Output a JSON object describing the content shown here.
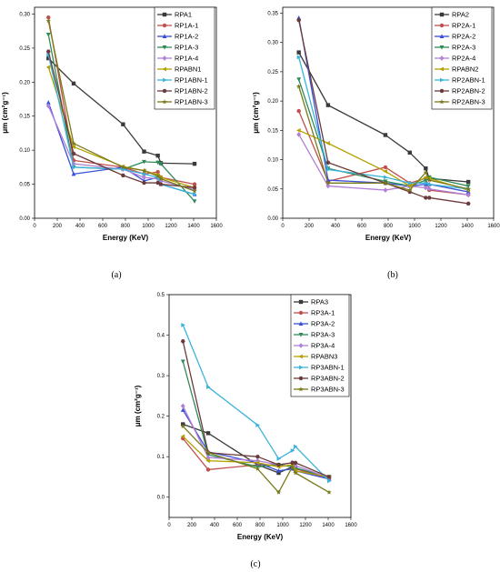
{
  "chart_data": [
    {
      "type": "line",
      "caption": "(a)",
      "xlabel": "Energy (KeV)",
      "ylabel": "μm (cm²g⁻¹)",
      "xlim": [
        0,
        1600
      ],
      "ylim": [
        0,
        0.31
      ],
      "xticks": [
        0,
        200,
        400,
        600,
        800,
        1000,
        1200,
        1400,
        1600
      ],
      "yticks": [
        0.0,
        0.05,
        0.1,
        0.15,
        0.2,
        0.25,
        0.3
      ],
      "ytick_labels": [
        "0.00",
        "0.05",
        "0.10",
        "0.15",
        "0.20",
        "0.25",
        "0.30"
      ],
      "legend_position": "top-right",
      "x": [
        122,
        344,
        779,
        964,
        1085,
        1112,
        1408
      ],
      "series": [
        {
          "name": "RPA1",
          "color": "#3a3a3a",
          "marker": "square",
          "values": [
            0.235,
            0.198,
            0.138,
            0.098,
            0.092,
            0.081,
            0.08
          ]
        },
        {
          "name": "RP1A-1",
          "color": "#c0504d",
          "marker": "circle",
          "values": [
            0.295,
            0.085,
            0.075,
            0.065,
            0.068,
            0.06,
            0.05
          ]
        },
        {
          "name": "RP1A-2",
          "color": "#3b4fd6",
          "marker": "triangle-up",
          "values": [
            0.17,
            0.065,
            0.075,
            0.055,
            0.06,
            0.05,
            0.035
          ]
        },
        {
          "name": "RP1A-3",
          "color": "#2e8b57",
          "marker": "triangle-down",
          "values": [
            0.27,
            0.075,
            0.072,
            0.083,
            0.082,
            0.08,
            0.025
          ]
        },
        {
          "name": "RP1A-4",
          "color": "#b07fd8",
          "marker": "diamond",
          "values": [
            0.165,
            0.08,
            0.072,
            0.06,
            0.058,
            0.055,
            0.042
          ]
        },
        {
          "name": "RPABN1",
          "color": "#b5a000",
          "marker": "triangle-left",
          "values": [
            0.222,
            0.105,
            0.076,
            0.07,
            0.064,
            0.06,
            0.045
          ]
        },
        {
          "name": "RP1ABN-1",
          "color": "#3ab4d8",
          "marker": "triangle-right",
          "values": [
            0.24,
            0.075,
            0.072,
            0.065,
            0.06,
            0.05,
            0.035
          ]
        },
        {
          "name": "RP1ABN-2",
          "color": "#6b3a3a",
          "marker": "hexagon",
          "values": [
            0.245,
            0.095,
            0.063,
            0.052,
            0.052,
            0.05,
            0.045
          ]
        },
        {
          "name": "RP1ABN-3",
          "color": "#7a7a1a",
          "marker": "star",
          "values": [
            0.29,
            0.11,
            0.075,
            0.07,
            0.062,
            0.058,
            0.04
          ]
        }
      ]
    },
    {
      "type": "line",
      "caption": "(b)",
      "xlabel": "Energy (KeV)",
      "ylabel": "μm (cm²g⁻¹)",
      "xlim": [
        0,
        1600
      ],
      "ylim": [
        0,
        0.36
      ],
      "xticks": [
        0,
        200,
        400,
        600,
        800,
        1000,
        1200,
        1400,
        1600
      ],
      "yticks": [
        0.0,
        0.05,
        0.1,
        0.15,
        0.2,
        0.25,
        0.3,
        0.35
      ],
      "ytick_labels": [
        "0.00",
        "0.05",
        "0.10",
        "0.15",
        "0.20",
        "0.25",
        "0.30",
        "0.35"
      ],
      "legend_position": "top-right",
      "x": [
        122,
        344,
        779,
        964,
        1085,
        1112,
        1408
      ],
      "series": [
        {
          "name": "RPA2",
          "color": "#3a3a3a",
          "marker": "square",
          "values": [
            0.283,
            0.193,
            0.142,
            0.112,
            0.085,
            0.068,
            0.062
          ]
        },
        {
          "name": "RP2A-1",
          "color": "#c0504d",
          "marker": "circle",
          "values": [
            0.183,
            0.063,
            0.087,
            0.06,
            0.068,
            0.048,
            0.04
          ]
        },
        {
          "name": "RP2A-2",
          "color": "#3b4fd6",
          "marker": "triangle-up",
          "values": [
            0.342,
            0.065,
            0.06,
            0.055,
            0.058,
            0.058,
            0.045
          ]
        },
        {
          "name": "RP2A-3",
          "color": "#2e8b57",
          "marker": "triangle-down",
          "values": [
            0.237,
            0.085,
            0.063,
            0.055,
            0.065,
            0.07,
            0.055
          ]
        },
        {
          "name": "RP2A-4",
          "color": "#b07fd8",
          "marker": "diamond",
          "values": [
            0.143,
            0.055,
            0.048,
            0.055,
            0.052,
            0.05,
            0.04
          ]
        },
        {
          "name": "RPABN2",
          "color": "#b5a000",
          "marker": "triangle-left",
          "values": [
            0.15,
            0.128,
            0.08,
            0.055,
            0.07,
            0.068,
            0.048
          ]
        },
        {
          "name": "RP2ABN-1",
          "color": "#3ab4d8",
          "marker": "triangle-right",
          "values": [
            0.275,
            0.083,
            0.07,
            0.06,
            0.06,
            0.058,
            0.05
          ]
        },
        {
          "name": "RP2ABN-2",
          "color": "#6b3a3a",
          "marker": "hexagon",
          "values": [
            0.338,
            0.095,
            0.06,
            0.045,
            0.035,
            0.035,
            0.025
          ]
        },
        {
          "name": "RP2ABN-3",
          "color": "#7a7a1a",
          "marker": "star",
          "values": [
            0.225,
            0.06,
            0.06,
            0.048,
            0.078,
            0.065,
            0.05
          ]
        }
      ]
    },
    {
      "type": "line",
      "caption": "(c)",
      "xlabel": "Energy (KeV)",
      "ylabel": "μm (cm²g⁻¹)",
      "xlim": [
        0,
        1600
      ],
      "ylim": [
        -0.05,
        0.5
      ],
      "xticks": [
        0,
        200,
        400,
        600,
        800,
        1000,
        1200,
        1400,
        1600
      ],
      "yticks": [
        0.0,
        0.1,
        0.2,
        0.3,
        0.4,
        0.5
      ],
      "ytick_labels": [
        "0.0",
        "0.1",
        "0.2",
        "0.3",
        "0.4",
        "0.5"
      ],
      "legend_position": "top-right",
      "x": [
        122,
        344,
        779,
        964,
        1085,
        1112,
        1408
      ],
      "series": [
        {
          "name": "RPA3",
          "color": "#3a3a3a",
          "marker": "square",
          "values": [
            0.18,
            0.158,
            0.08,
            0.06,
            0.075,
            0.07,
            0.05
          ]
        },
        {
          "name": "RP3A-1",
          "color": "#c0504d",
          "marker": "circle",
          "values": [
            0.145,
            0.068,
            0.08,
            0.08,
            0.085,
            0.07,
            0.045
          ]
        },
        {
          "name": "RP3A-2",
          "color": "#3b4fd6",
          "marker": "triangle-up",
          "values": [
            0.215,
            0.112,
            0.085,
            0.065,
            0.07,
            0.065,
            0.045
          ]
        },
        {
          "name": "RP3A-3",
          "color": "#2e8b57",
          "marker": "triangle-down",
          "values": [
            0.335,
            0.105,
            0.075,
            0.08,
            0.075,
            0.072,
            0.05
          ]
        },
        {
          "name": "RP3A-4",
          "color": "#b07fd8",
          "marker": "diamond",
          "values": [
            0.225,
            0.098,
            0.09,
            0.08,
            0.085,
            0.078,
            0.048
          ]
        },
        {
          "name": "RPABN3",
          "color": "#b5a000",
          "marker": "triangle-left",
          "values": [
            0.15,
            0.09,
            0.085,
            0.075,
            0.08,
            0.065,
            0.05
          ]
        },
        {
          "name": "RP3ABN-1",
          "color": "#3ab4d8",
          "marker": "triangle-right",
          "values": [
            0.425,
            0.272,
            0.178,
            0.095,
            0.115,
            0.125,
            0.04
          ]
        },
        {
          "name": "RP3ABN-2",
          "color": "#6b3a3a",
          "marker": "hexagon",
          "values": [
            0.385,
            0.11,
            0.1,
            0.08,
            0.085,
            0.085,
            0.05
          ]
        },
        {
          "name": "RP3ABN-3",
          "color": "#7a7a1a",
          "marker": "star",
          "values": [
            0.175,
            0.11,
            0.07,
            0.012,
            0.075,
            0.06,
            0.012
          ]
        }
      ]
    }
  ]
}
